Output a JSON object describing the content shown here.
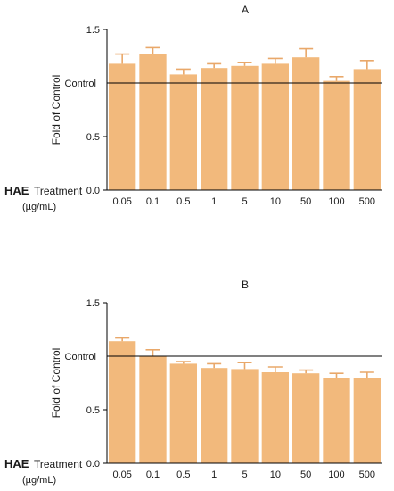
{
  "chart_data": [
    {
      "panel_label": "A",
      "type": "bar",
      "categories": [
        "0.05",
        "0.1",
        "0.5",
        "1",
        "5",
        "10",
        "50",
        "100",
        "500"
      ],
      "values": [
        1.18,
        1.27,
        1.08,
        1.14,
        1.16,
        1.18,
        1.24,
        1.02,
        1.13
      ],
      "errors": [
        0.09,
        0.06,
        0.05,
        0.04,
        0.03,
        0.05,
        0.08,
        0.04,
        0.08
      ],
      "ylabel": "Fold of Control",
      "ylim": [
        0.0,
        1.5
      ],
      "yticks": [
        "0.0",
        "0.5",
        "1.5"
      ],
      "reference_line": {
        "value": 1.0,
        "label": "Control"
      },
      "xlabel_bold": "HAE",
      "xlabel_rest": "Treatment",
      "xunit": "(µg/mL)",
      "bar_color": "#f2b97c",
      "error_color": "#e9a86a",
      "grid": false
    },
    {
      "panel_label": "B",
      "type": "bar",
      "categories": [
        "0.05",
        "0.1",
        "0.5",
        "1",
        "5",
        "10",
        "50",
        "100",
        "500"
      ],
      "values": [
        1.14,
        1.0,
        0.93,
        0.89,
        0.88,
        0.85,
        0.84,
        0.8,
        0.8
      ],
      "errors": [
        0.03,
        0.06,
        0.02,
        0.04,
        0.06,
        0.05,
        0.03,
        0.04,
        0.05
      ],
      "ylabel": "Fold of Control",
      "ylim": [
        0.0,
        1.5
      ],
      "yticks": [
        "0.0",
        "0.5",
        "1.5"
      ],
      "reference_line": {
        "value": 1.0,
        "label": "Control"
      },
      "xlabel_bold": "HAE",
      "xlabel_rest": "Treatment",
      "xunit": "(µg/mL)",
      "bar_color": "#f2b97c",
      "error_color": "#e9a86a",
      "grid": false
    }
  ]
}
